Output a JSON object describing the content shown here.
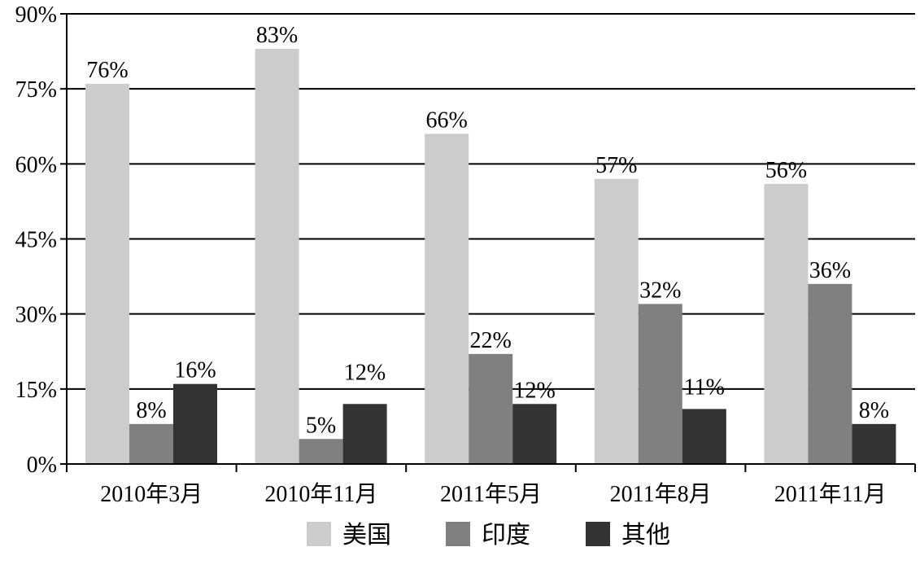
{
  "chart_data": {
    "type": "bar",
    "title": "",
    "xlabel": "",
    "ylabel": "",
    "ylim": [
      0,
      90
    ],
    "y_ticks": [
      "0%",
      "15%",
      "30%",
      "45%",
      "60%",
      "75%",
      "90%"
    ],
    "y_tick_values": [
      0,
      15,
      30,
      45,
      60,
      75,
      90
    ],
    "categories": [
      "2010年3月",
      "2010年11月",
      "2011年5月",
      "2011年8月",
      "2011年11月"
    ],
    "series": [
      {
        "name": "美国",
        "color": "#cccccc",
        "values": [
          76,
          83,
          66,
          57,
          56
        ],
        "labels": [
          "76%",
          "83%",
          "66%",
          "57%",
          "56%"
        ]
      },
      {
        "name": "印度",
        "color": "#808080",
        "values": [
          8,
          5,
          22,
          32,
          36
        ],
        "labels": [
          "8%",
          "5%",
          "22%",
          "32%",
          "36%"
        ]
      },
      {
        "name": "其他",
        "color": "#333333",
        "values": [
          16,
          12,
          12,
          11,
          8
        ],
        "labels": [
          "16%",
          "12%",
          "12%",
          "11%",
          "8%"
        ]
      }
    ],
    "grid": true,
    "legend_position": "bottom"
  }
}
